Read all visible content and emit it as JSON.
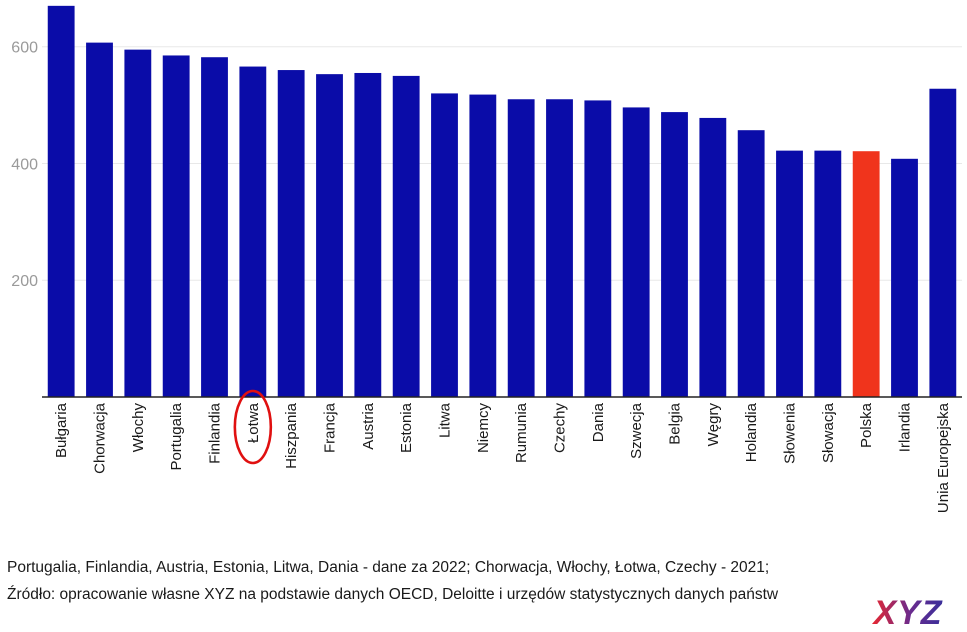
{
  "chart_data": {
    "type": "bar",
    "title": "",
    "xlabel": "",
    "ylabel": "",
    "ylim": [
      0,
      680
    ],
    "yticks": [
      200,
      400,
      600
    ],
    "grid": true,
    "categories": [
      "Bułgaria",
      "Chorwacja",
      "Włochy",
      "Portugalia",
      "Finlandia",
      "Łotwa",
      "Hiszpania",
      "Francja",
      "Austria",
      "Estonia",
      "Litwa",
      "Niemcy",
      "Rumunia",
      "Czechy",
      "Dania",
      "Szwecja",
      "Belgia",
      "Węgry",
      "Holandia",
      "Słowenia",
      "Słowacja",
      "Polska",
      "Irlandia",
      "Unia Europejska"
    ],
    "values": [
      670,
      607,
      595,
      585,
      582,
      566,
      560,
      553,
      555,
      550,
      520,
      518,
      510,
      510,
      508,
      496,
      488,
      478,
      457,
      422,
      422,
      421,
      408,
      528
    ],
    "colors": {
      "default": "#0a0ca8",
      "highlight": "#f0341c",
      "circle": "#e01010",
      "axis": "#222222",
      "grid": "#e8e8e8"
    },
    "highlighted_category": "Polska",
    "circled_category": "Łotwa"
  },
  "footer": {
    "note": "Portugalia, Finlandia, Austria, Estonia, Litwa, Dania - dane za 2022; Chorwacja, Włochy, Łotwa, Czechy - 2021;",
    "source": "Źródło: opracowanie własne XYZ na podstawie danych OECD, Deloitte i urzędów statystycznych danych państw"
  },
  "logo": {
    "text": "XYZ",
    "colors": [
      "#e8262f",
      "#6a2b8e",
      "#3a2f9a"
    ]
  }
}
